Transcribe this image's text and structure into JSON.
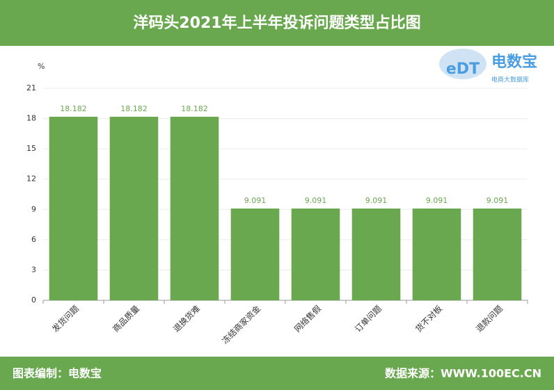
{
  "chart_data": {
    "type": "bar",
    "title": "洋码头2021年上半年投诉问题类型占比图",
    "y_unit": "%",
    "categories": [
      "发货问题",
      "商品质量",
      "退换货难",
      "冻结商家资金",
      "网络售假",
      "订单问题",
      "货不对板",
      "退款问题"
    ],
    "values": [
      18.182,
      18.182,
      18.182,
      9.091,
      9.091,
      9.091,
      9.091,
      9.091
    ],
    "color": "#6aa84f",
    "ylim": [
      0,
      21
    ],
    "yticks": [
      0,
      3,
      6,
      9,
      12,
      15,
      18,
      21
    ],
    "grid": true
  },
  "logo": {
    "mark": "eDT",
    "name": "电数宝",
    "tagline": "电商大数据库"
  },
  "footer": {
    "left": "图表编制：电数宝",
    "right": "数据来源：WWW.100EC.CN"
  }
}
